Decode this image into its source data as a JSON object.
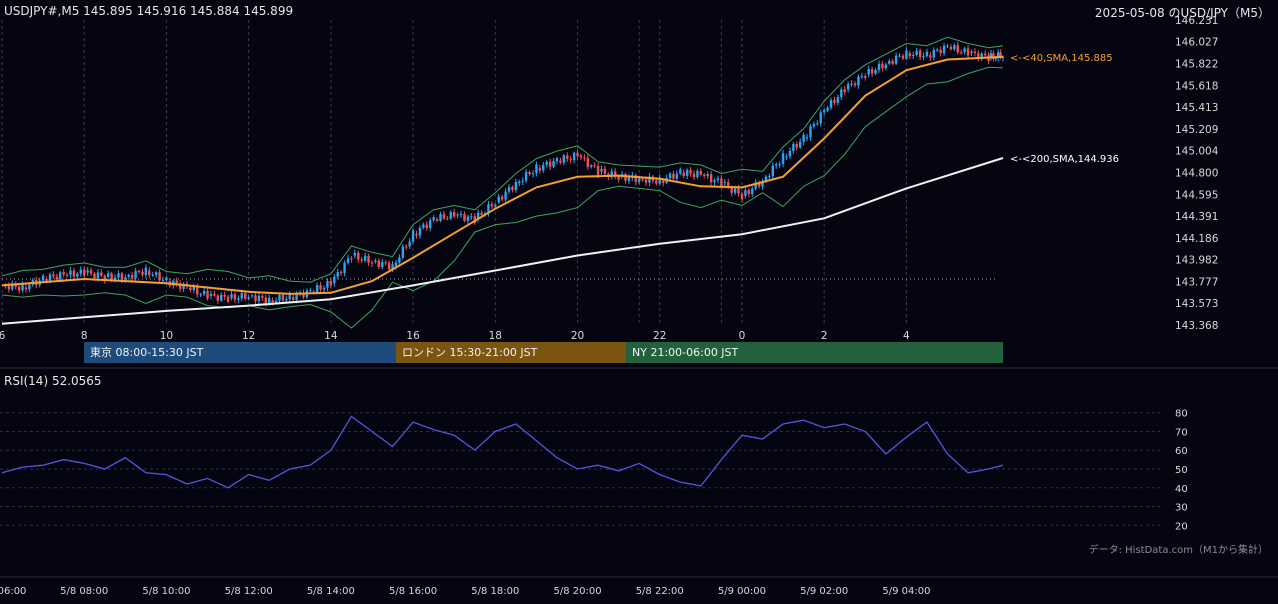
{
  "header": {
    "left": "USDJPY#,M5 145.895 145.916 145.884 145.899",
    "right": "2025-05-08 のUSD/JPY（M5）"
  },
  "colors": {
    "background": "#050512",
    "grid": "#3a3a4a",
    "candle_up": "#2fa3f0",
    "candle_down": "#ef5350",
    "sma40": "#f5a030",
    "sma200": "#f0f0f0",
    "bollinger": "#3fa45a",
    "rsi": "#5555dd"
  },
  "chart_data": [
    {
      "type": "line",
      "title": "",
      "symbol": "USDJPY#",
      "timeframe": "M5",
      "ohlc_last": {
        "open": 145.895,
        "high": 145.916,
        "low": 145.884,
        "close": 145.899
      },
      "x_tick_labels": [
        "6",
        "8",
        "10",
        "12",
        "14",
        "16",
        "18",
        "20",
        "22",
        "0",
        "2",
        "4"
      ],
      "x_hours": [
        6,
        8,
        10,
        12,
        14,
        16,
        18,
        20,
        22,
        24,
        26,
        28
      ],
      "y_ticks": [
        "146.231",
        "146.027",
        "145.822",
        "145.618",
        "145.413",
        "145.209",
        "145.004",
        "144.800",
        "144.595",
        "144.391",
        "144.186",
        "143.982",
        "143.777",
        "143.573",
        "143.368"
      ],
      "ylim": [
        143.368,
        146.231
      ],
      "xlim_hours": [
        6,
        30.35
      ],
      "grid": "vertical dashed session markers",
      "reference_line": 143.8,
      "series": [
        {
          "name": "USDJPY# M5 (close)",
          "x": [
            6,
            6.5,
            7,
            7.5,
            8,
            8.5,
            9,
            9.5,
            10,
            10.5,
            11,
            11.5,
            12,
            12.5,
            13,
            13.5,
            14,
            14.5,
            15,
            15.5,
            16,
            16.5,
            17,
            17.5,
            18,
            18.5,
            19,
            19.5,
            20,
            20.5,
            21,
            21.5,
            22,
            22.5,
            23,
            23.5,
            24,
            24.5,
            25,
            25.5,
            26,
            26.5,
            27,
            27.5,
            28,
            28.5,
            29,
            29.5,
            30,
            30.35
          ],
          "values": [
            143.74,
            143.72,
            143.8,
            143.84,
            143.86,
            143.82,
            143.82,
            143.88,
            143.78,
            143.72,
            143.64,
            143.62,
            143.64,
            143.6,
            143.63,
            143.68,
            143.76,
            144.02,
            143.96,
            143.92,
            144.22,
            144.36,
            144.4,
            144.36,
            144.52,
            144.7,
            144.84,
            144.91,
            144.96,
            144.81,
            144.76,
            144.74,
            144.72,
            144.8,
            144.78,
            144.7,
            144.58,
            144.72,
            144.95,
            145.12,
            145.38,
            145.58,
            145.72,
            145.82,
            145.92,
            145.9,
            145.98,
            145.92,
            145.88,
            145.899
          ]
        },
        {
          "name": "SMA 40",
          "label": "<-<40,SMA,145.885",
          "x": [
            6,
            8,
            10,
            12,
            13,
            14,
            15,
            16,
            17,
            18,
            19,
            20,
            21,
            22,
            23,
            24,
            25,
            26,
            27,
            28,
            29,
            30.35
          ],
          "values": [
            143.74,
            143.8,
            143.76,
            143.68,
            143.66,
            143.67,
            143.78,
            144.0,
            144.23,
            144.46,
            144.66,
            144.76,
            144.77,
            144.74,
            144.67,
            144.66,
            144.76,
            145.12,
            145.52,
            145.76,
            145.86,
            145.885
          ]
        },
        {
          "name": "SMA 200",
          "label": "<-<200,SMA,144.936",
          "x": [
            6,
            8,
            10,
            12,
            14,
            16,
            18,
            20,
            22,
            24,
            26,
            28,
            30.35
          ],
          "values": [
            143.38,
            143.44,
            143.5,
            143.55,
            143.61,
            143.74,
            143.88,
            144.02,
            144.13,
            144.22,
            144.37,
            144.65,
            144.936
          ]
        }
      ]
    },
    {
      "type": "line",
      "title": "",
      "label": "RSI(14) 52.0565",
      "y_ticks": [
        "80",
        "70",
        "60",
        "50",
        "40",
        "30",
        "20"
      ],
      "ylim": [
        17.5,
        82.5
      ],
      "series": [
        {
          "name": "RSI(14)",
          "x": [
            6,
            6.5,
            7,
            7.5,
            8,
            8.5,
            9,
            9.5,
            10,
            10.5,
            11,
            11.5,
            12,
            12.5,
            13,
            13.5,
            14,
            14.5,
            15,
            15.5,
            16,
            16.5,
            17,
            17.5,
            18,
            18.5,
            19,
            19.5,
            20,
            20.5,
            21,
            21.5,
            22,
            22.5,
            23,
            23.5,
            24,
            24.5,
            25,
            25.5,
            26,
            26.5,
            27,
            27.5,
            28,
            28.5,
            29,
            29.5,
            30,
            30.35
          ],
          "values": [
            48,
            51,
            52,
            55,
            53,
            50,
            56,
            48,
            47,
            42,
            45,
            40,
            47,
            44,
            50,
            52,
            60,
            78,
            70,
            62,
            75,
            71,
            68,
            60,
            70,
            74,
            65,
            56,
            50,
            52,
            49,
            53,
            47,
            43,
            41,
            55,
            68,
            66,
            74,
            76,
            72,
            74,
            70,
            58,
            67,
            75,
            58,
            48,
            50,
            52.06
          ]
        }
      ]
    }
  ],
  "axes": {
    "bottom_time_labels": [
      "06:00",
      "5/8 08:00",
      "5/8 10:00",
      "5/8 12:00",
      "5/8 14:00",
      "5/8 16:00",
      "5/8 18:00",
      "5/8 20:00",
      "5/8 22:00",
      "5/9 00:00",
      "5/9 02:00",
      "5/9 04:00"
    ]
  },
  "sessions": [
    {
      "label": "東京 08:00-15:30 JST",
      "color": "#1f4a7c"
    },
    {
      "label": "ロンドン 15:30-21:00 JST",
      "color": "#7a5410"
    },
    {
      "label": "NY 21:00-06:00 JST",
      "color": "#23613c"
    }
  ],
  "panel": {
    "rsi_label": "RSI(14) 52.0565",
    "credit": "データ: HistData.com（M1から集計）"
  }
}
